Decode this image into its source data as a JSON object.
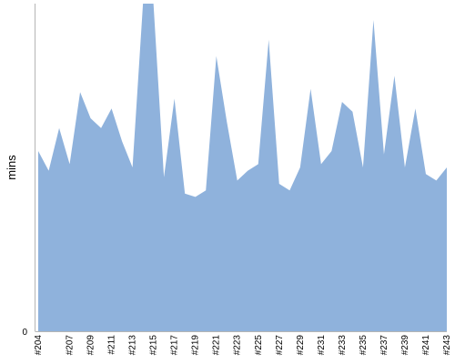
{
  "chart_data": {
    "type": "area",
    "ylabel": "mins",
    "y_tick_labels": [
      "0"
    ],
    "ylim": [
      0,
      100
    ],
    "grid": false,
    "legend": "none",
    "color": "#8fb2dc",
    "axis_color": "#b5b5b5",
    "x": [
      "#204",
      "#205",
      "#206",
      "#207",
      "#208",
      "#209",
      "#210",
      "#211",
      "#212",
      "#213",
      "#214",
      "#215",
      "#216",
      "#217",
      "#218",
      "#219",
      "#220",
      "#221",
      "#222",
      "#223",
      "#224",
      "#225",
      "#226",
      "#227",
      "#228",
      "#229",
      "#230",
      "#231",
      "#232",
      "#233",
      "#234",
      "#235",
      "#236",
      "#237",
      "#238",
      "#239",
      "#240",
      "#241",
      "#242",
      "#243"
    ],
    "x_tick_labels": [
      "#204",
      "#207",
      "#209",
      "#211",
      "#213",
      "#215",
      "#217",
      "#219",
      "#221",
      "#223",
      "#225",
      "#227",
      "#229",
      "#231",
      "#233",
      "#235",
      "#237",
      "#239",
      "#241",
      "#243"
    ],
    "values": [
      55,
      49,
      62,
      51,
      73,
      65,
      62,
      68,
      58,
      50,
      100,
      100,
      47,
      71,
      42,
      41,
      43,
      84,
      64,
      46,
      49,
      51,
      89,
      45,
      43,
      50,
      74,
      51,
      55,
      70,
      67,
      50,
      95,
      54,
      78,
      50,
      68,
      48,
      46,
      50
    ]
  }
}
